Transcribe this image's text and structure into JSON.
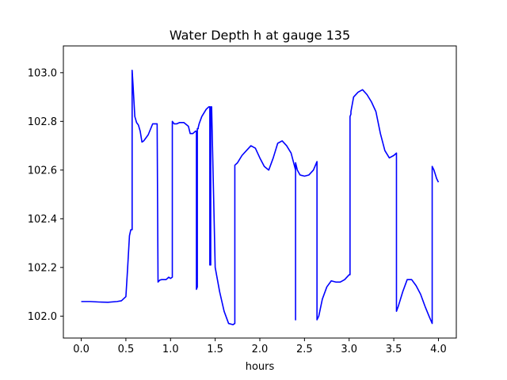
{
  "chart_data": {
    "type": "line",
    "title": "Water Depth h at gauge 135",
    "xlabel": "hours",
    "ylabel": "",
    "xlim": [
      -0.2,
      4.2
    ],
    "ylim": [
      101.91,
      103.11
    ],
    "xticks": [
      0.0,
      0.5,
      1.0,
      1.5,
      2.0,
      2.5,
      3.0,
      3.5,
      4.0
    ],
    "xtick_labels": [
      "0.0",
      "0.5",
      "1.0",
      "1.5",
      "2.0",
      "2.5",
      "3.0",
      "3.5",
      "4.0"
    ],
    "yticks": [
      102.0,
      102.2,
      102.4,
      102.6,
      102.8,
      103.0
    ],
    "ytick_labels": [
      "102.0",
      "102.2",
      "102.4",
      "102.6",
      "102.8",
      "103.0"
    ],
    "grid": false,
    "series": [
      {
        "color": "#0000ff",
        "x": [
          0.0,
          0.1,
          0.2,
          0.3,
          0.4,
          0.45,
          0.5,
          0.52,
          0.54,
          0.555,
          0.57,
          0.57,
          0.58,
          0.6,
          0.62,
          0.64,
          0.66,
          0.68,
          0.7,
          0.72,
          0.75,
          0.8,
          0.85,
          0.86,
          0.86,
          0.88,
          0.9,
          0.95,
          0.98,
          1.0,
          1.02,
          1.02,
          1.04,
          1.07,
          1.1,
          1.15,
          1.2,
          1.22,
          1.25,
          1.28,
          1.29,
          1.29,
          1.3,
          1.3,
          1.31,
          1.31,
          1.32,
          1.35,
          1.4,
          1.43,
          1.44,
          1.44,
          1.45,
          1.45,
          1.46,
          1.5,
          1.55,
          1.6,
          1.65,
          1.7,
          1.72,
          1.72,
          1.75,
          1.8,
          1.85,
          1.9,
          1.95,
          2.0,
          2.05,
          2.1,
          2.15,
          2.2,
          2.25,
          2.3,
          2.35,
          2.4,
          2.4,
          2.4,
          2.42,
          2.45,
          2.5,
          2.55,
          2.6,
          2.64,
          2.64,
          2.66,
          2.7,
          2.75,
          2.8,
          2.85,
          2.9,
          2.95,
          3.0,
          3.01,
          3.01,
          3.02,
          3.02,
          3.05,
          3.1,
          3.15,
          3.2,
          3.25,
          3.3,
          3.35,
          3.4,
          3.45,
          3.5,
          3.53,
          3.53,
          3.55,
          3.6,
          3.65,
          3.7,
          3.75,
          3.8,
          3.85,
          3.9,
          3.93,
          3.93,
          3.95,
          3.98,
          4.0
        ],
        "values": [
          102.06,
          102.06,
          102.058,
          102.057,
          102.06,
          102.063,
          102.08,
          102.2,
          102.33,
          102.355,
          102.355,
          103.01,
          102.95,
          102.82,
          102.795,
          102.785,
          102.76,
          102.715,
          102.72,
          102.73,
          102.745,
          102.79,
          102.79,
          102.14,
          102.14,
          102.148,
          102.15,
          102.15,
          102.16,
          102.155,
          102.16,
          102.8,
          102.79,
          102.79,
          102.795,
          102.795,
          102.78,
          102.75,
          102.75,
          102.76,
          102.76,
          102.11,
          102.12,
          102.77,
          102.77,
          102.775,
          102.79,
          102.82,
          102.85,
          102.86,
          102.86,
          102.21,
          102.21,
          102.86,
          102.86,
          102.2,
          102.1,
          102.02,
          101.97,
          101.965,
          101.97,
          102.62,
          102.63,
          102.66,
          102.68,
          102.7,
          102.69,
          102.65,
          102.615,
          102.6,
          102.65,
          102.71,
          102.72,
          102.7,
          102.67,
          102.6,
          101.985,
          102.63,
          102.6,
          102.58,
          102.575,
          102.58,
          102.6,
          102.635,
          101.985,
          102.0,
          102.07,
          102.12,
          102.145,
          102.14,
          102.14,
          102.15,
          102.17,
          102.17,
          102.82,
          102.83,
          102.84,
          102.9,
          102.92,
          102.93,
          102.91,
          102.88,
          102.84,
          102.75,
          102.68,
          102.65,
          102.66,
          102.67,
          102.02,
          102.04,
          102.1,
          102.15,
          102.15,
          102.125,
          102.09,
          102.04,
          101.995,
          101.97,
          102.615,
          102.6,
          102.565,
          102.55
        ]
      }
    ]
  }
}
